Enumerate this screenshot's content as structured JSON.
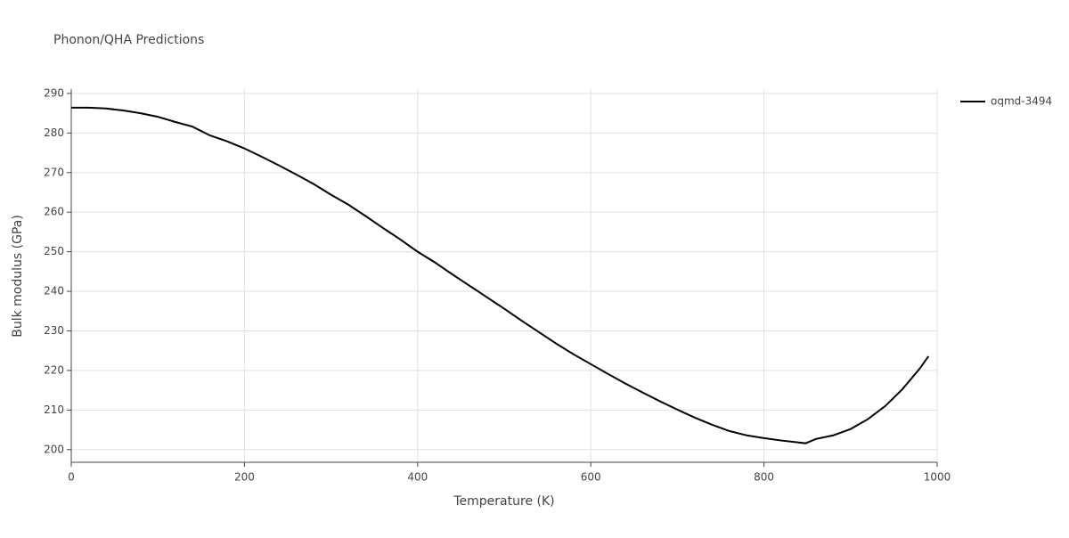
{
  "chart_data": {
    "type": "line",
    "title": "Phonon/QHA Predictions",
    "x_label": "Temperature (K)",
    "y_label": "Bulk modulus (GPa)",
    "x": [
      0,
      20,
      40,
      60,
      80,
      100,
      120,
      140,
      160,
      180,
      200,
      220,
      240,
      260,
      280,
      300,
      320,
      340,
      360,
      380,
      400,
      420,
      440,
      460,
      480,
      500,
      520,
      540,
      560,
      580,
      600,
      620,
      640,
      660,
      680,
      700,
      720,
      740,
      760,
      780,
      800,
      820,
      840,
      848,
      860,
      880,
      900,
      920,
      940,
      960,
      980,
      990
    ],
    "series": [
      {
        "name": "oqmd-3494",
        "color": "#000000",
        "values": [
          286.4,
          286.4,
          286.2,
          285.7,
          285.0,
          284.1,
          282.8,
          281.6,
          279.4,
          277.9,
          276.1,
          274.0,
          271.8,
          269.5,
          267.1,
          264.4,
          261.9,
          259.0,
          256.0,
          253.1,
          250.0,
          247.3,
          244.3,
          241.4,
          238.5,
          235.6,
          232.6,
          229.7,
          226.8,
          224.1,
          221.6,
          219.1,
          216.7,
          214.4,
          212.2,
          210.1,
          208.1,
          206.3,
          204.7,
          203.6,
          202.9,
          202.3,
          201.8,
          201.6,
          202.7,
          203.6,
          205.2,
          207.7,
          211.0,
          215.3,
          220.5,
          223.6
        ]
      }
    ],
    "xlim": [
      0,
      1000
    ],
    "xticks": [
      0,
      200,
      400,
      600,
      800,
      1000
    ],
    "ylim": [
      196.8,
      291.1
    ],
    "yticks": [
      200,
      210,
      220,
      230,
      240,
      250,
      260,
      270,
      280,
      290
    ],
    "grid": true,
    "legend": "right"
  }
}
